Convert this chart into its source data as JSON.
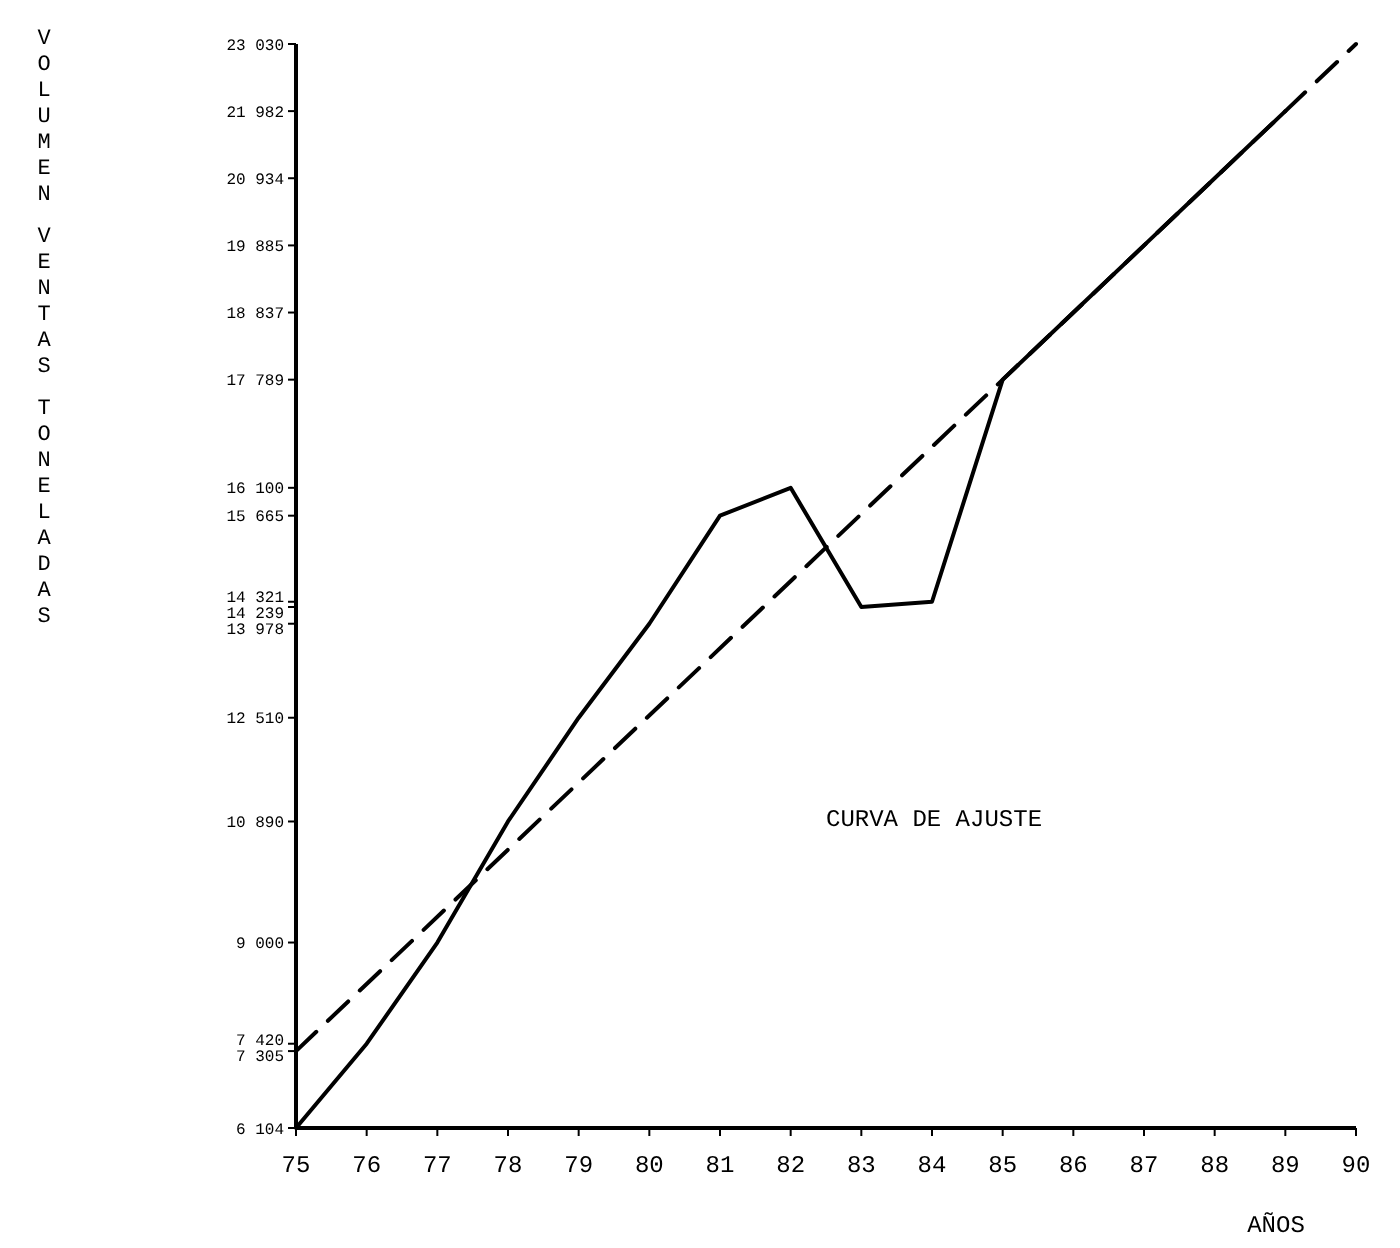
{
  "chart_data": {
    "type": "line",
    "xlabel": "AÑOS",
    "ylabel": "VOLUMEN VENTAS TONELADAS",
    "annotations": [
      "CURVA DE AJUSTE"
    ],
    "xlim": [
      75,
      90
    ],
    "xticks": [
      75,
      76,
      77,
      78,
      79,
      80,
      81,
      82,
      83,
      84,
      85,
      86,
      87,
      88,
      89,
      90
    ],
    "ylim": [
      6104,
      23030
    ],
    "yticks": [
      {
        "value": 6104,
        "label": "6 104"
      },
      {
        "value": 7305,
        "label": "7 305"
      },
      {
        "value": 7420,
        "label": "7 420"
      },
      {
        "value": 9000,
        "label": "9 000"
      },
      {
        "value": 10890,
        "label": "10 890"
      },
      {
        "value": 12510,
        "label": "12 510"
      },
      {
        "value": 13978,
        "label": "13 978"
      },
      {
        "value": 14239,
        "label": "14 239"
      },
      {
        "value": 14321,
        "label": "14 321"
      },
      {
        "value": 15665,
        "label": "15 665"
      },
      {
        "value": 16100,
        "label": "16 100"
      },
      {
        "value": 17789,
        "label": "17 789"
      },
      {
        "value": 18837,
        "label": "18 837"
      },
      {
        "value": 19885,
        "label": "19 885"
      },
      {
        "value": 20934,
        "label": "20 934"
      },
      {
        "value": 21982,
        "label": "21 982"
      },
      {
        "value": 23030,
        "label": "23 030"
      }
    ],
    "grid": false,
    "marker": "none",
    "series": [
      {
        "color": "#000000",
        "line_style": "solid",
        "x": [
          75,
          76,
          77,
          78,
          79,
          80,
          81,
          82,
          83,
          84,
          85,
          86,
          87,
          88,
          89
        ],
        "values": [
          6104,
          7420,
          9000,
          10890,
          12510,
          13978,
          15665,
          16100,
          14239,
          14321,
          17789,
          18837,
          19885,
          20934,
          21982
        ]
      },
      {
        "color": "#000000",
        "line_style": "dashed",
        "x": [
          75,
          90
        ],
        "values": [
          7305,
          23030
        ]
      }
    ]
  }
}
